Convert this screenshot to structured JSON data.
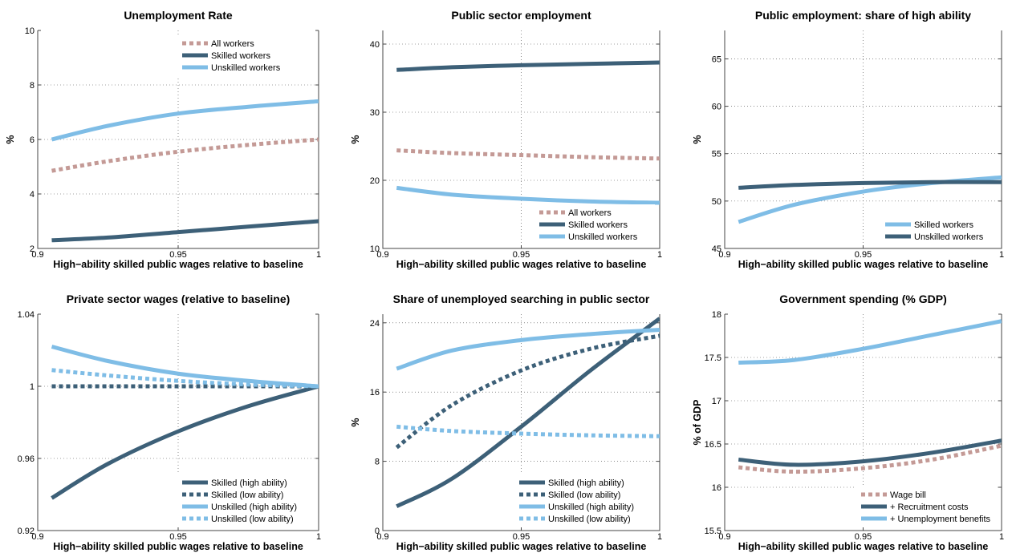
{
  "colors": {
    "all_workers": "#c49a96",
    "skilled": "#3d6078",
    "unskilled": "#7fbde6"
  },
  "chart_data": [
    {
      "type": "line",
      "title": "Unemployment Rate",
      "xlabel": "High−ability skilled public wages relative to baseline",
      "ylabel": "%",
      "xlim": [
        0.9,
        1
      ],
      "ylim": [
        2,
        10
      ],
      "xticks": [
        0.9,
        0.95,
        1
      ],
      "xtick_labels": [
        "0.9",
        "0.95",
        "1"
      ],
      "yticks": [
        2,
        4,
        6,
        8,
        10
      ],
      "ytick_labels": [
        "2",
        "4",
        "6",
        "8",
        "10"
      ],
      "grid": true,
      "legend_position": "top-right",
      "x": [
        0.905,
        0.925,
        0.95,
        0.975,
        1.0
      ],
      "series": [
        {
          "name": "All workers",
          "color_key": "all_workers",
          "style": "dotted",
          "values": [
            4.85,
            5.2,
            5.55,
            5.8,
            6.0
          ]
        },
        {
          "name": "Skilled workers",
          "color_key": "skilled",
          "style": "solid",
          "values": [
            2.3,
            2.4,
            2.6,
            2.8,
            3.0
          ]
        },
        {
          "name": "Unskilled workers",
          "color_key": "unskilled",
          "style": "solid",
          "values": [
            6.0,
            6.5,
            6.95,
            7.2,
            7.4
          ]
        }
      ]
    },
    {
      "type": "line",
      "title": "Public sector employment",
      "xlabel": "High−ability skilled public wages relative to baseline",
      "ylabel": "%",
      "xlim": [
        0.9,
        1
      ],
      "ylim": [
        10,
        42
      ],
      "xticks": [
        0.9,
        0.95,
        1
      ],
      "xtick_labels": [
        "0.9",
        "0.95",
        "1"
      ],
      "yticks": [
        10,
        20,
        30,
        40
      ],
      "ytick_labels": [
        "10",
        "20",
        "30",
        "40"
      ],
      "grid": true,
      "legend_position": "bottom-right",
      "x": [
        0.905,
        0.925,
        0.95,
        0.975,
        1.0
      ],
      "series": [
        {
          "name": "All workers",
          "color_key": "all_workers",
          "style": "dotted",
          "values": [
            24.4,
            24.0,
            23.7,
            23.4,
            23.2
          ]
        },
        {
          "name": "Skilled workers",
          "color_key": "skilled",
          "style": "solid",
          "values": [
            36.2,
            36.6,
            36.9,
            37.1,
            37.3
          ]
        },
        {
          "name": "Unskilled workers",
          "color_key": "unskilled",
          "style": "solid",
          "values": [
            18.9,
            17.9,
            17.3,
            16.9,
            16.7
          ]
        }
      ]
    },
    {
      "type": "line",
      "title": "Public employment: share of high ability",
      "xlabel": "High−ability skilled public wages relative to baseline",
      "ylabel": "%",
      "xlim": [
        0.9,
        1
      ],
      "ylim": [
        45,
        68
      ],
      "xticks": [
        0.9,
        0.95,
        1
      ],
      "xtick_labels": [
        "0.9",
        "0.95",
        "1"
      ],
      "yticks": [
        45,
        50,
        55,
        60,
        65
      ],
      "ytick_labels": [
        "45",
        "50",
        "55",
        "60",
        "65"
      ],
      "grid": true,
      "legend_position": "bottom-right",
      "x": [
        0.905,
        0.925,
        0.95,
        0.975,
        1.0
      ],
      "series": [
        {
          "name": "Skilled workers",
          "color_key": "unskilled",
          "style": "solid",
          "values": [
            47.8,
            49.6,
            51.0,
            51.9,
            52.5
          ]
        },
        {
          "name": "Unskilled workers",
          "color_key": "skilled",
          "style": "solid",
          "values": [
            51.4,
            51.7,
            51.9,
            52.0,
            52.0
          ]
        }
      ]
    },
    {
      "type": "line",
      "title": "Private sector wages (relative to baseline)",
      "xlabel": "High−ability skilled public wages relative to baseline",
      "ylabel": "",
      "xlim": [
        0.9,
        1
      ],
      "ylim": [
        0.92,
        1.04
      ],
      "xticks": [
        0.9,
        0.95,
        1
      ],
      "xtick_labels": [
        "0.9",
        "0.95",
        "1"
      ],
      "yticks": [
        0.92,
        0.96,
        1,
        1.04
      ],
      "ytick_labels": [
        "0.92",
        "0.96",
        "1",
        "1.04"
      ],
      "grid": true,
      "legend_position": "bottom-right",
      "x": [
        0.905,
        0.925,
        0.95,
        0.975,
        1.0
      ],
      "series": [
        {
          "name": "Skilled (high ability)",
          "color_key": "skilled",
          "style": "solid",
          "values": [
            0.938,
            0.957,
            0.975,
            0.989,
            1.0
          ]
        },
        {
          "name": "Skilled (low ability)",
          "color_key": "skilled",
          "style": "dotted",
          "values": [
            1.0,
            1.0,
            1.0,
            1.0,
            1.0
          ]
        },
        {
          "name": "Unskilled (high ability)",
          "color_key": "unskilled",
          "style": "solid",
          "values": [
            1.022,
            1.014,
            1.007,
            1.003,
            1.0
          ]
        },
        {
          "name": "Unskilled (low ability)",
          "color_key": "unskilled",
          "style": "dotted",
          "values": [
            1.009,
            1.006,
            1.003,
            1.001,
            1.0
          ]
        }
      ]
    },
    {
      "type": "line",
      "title": "Share of unemployed searching in public sector",
      "xlabel": "High−ability skilled public wages relative to baseline",
      "ylabel": "%",
      "xlim": [
        0.9,
        1
      ],
      "ylim": [
        0,
        25
      ],
      "xticks": [
        0.9,
        0.95,
        1
      ],
      "xtick_labels": [
        "0.9",
        "0.95",
        "1"
      ],
      "yticks": [
        0,
        8,
        16,
        24
      ],
      "ytick_labels": [
        "0",
        "8",
        "16",
        "24"
      ],
      "grid": true,
      "legend_position": "bottom-right",
      "x": [
        0.905,
        0.925,
        0.95,
        0.975,
        1.0
      ],
      "series": [
        {
          "name": "Skilled (high ability)",
          "color_key": "skilled",
          "style": "solid",
          "values": [
            2.8,
            6.0,
            12.0,
            18.5,
            24.5
          ]
        },
        {
          "name": "Skilled (low ability)",
          "color_key": "skilled",
          "style": "dotted",
          "values": [
            9.6,
            14.5,
            18.5,
            21.0,
            22.5
          ]
        },
        {
          "name": "Unskilled (high ability)",
          "color_key": "unskilled",
          "style": "solid",
          "values": [
            18.7,
            20.8,
            22.0,
            22.7,
            23.2
          ]
        },
        {
          "name": "Unskilled (low ability)",
          "color_key": "unskilled",
          "style": "dotted",
          "values": [
            12.0,
            11.5,
            11.2,
            11.0,
            10.9
          ]
        }
      ]
    },
    {
      "type": "line",
      "title": "Government spending (% GDP)",
      "xlabel": "High−ability skilled public wages relative to baseline",
      "ylabel": "% of GDP",
      "xlim": [
        0.9,
        1
      ],
      "ylim": [
        15.5,
        18
      ],
      "xticks": [
        0.9,
        0.95,
        1
      ],
      "xtick_labels": [
        "0.9",
        "0.95",
        "1"
      ],
      "yticks": [
        15.5,
        16,
        16.5,
        17,
        17.5,
        18
      ],
      "ytick_labels": [
        "15.5",
        "16",
        "16.5",
        "17",
        "17.5",
        "18"
      ],
      "grid": true,
      "legend_position": "bottom-right",
      "x": [
        0.905,
        0.925,
        0.95,
        0.975,
        1.0
      ],
      "series": [
        {
          "name": "Wage bill",
          "color_key": "all_workers",
          "style": "dotted",
          "values": [
            16.23,
            16.18,
            16.22,
            16.32,
            16.48
          ]
        },
        {
          "name": "+ Recruitment costs",
          "color_key": "skilled",
          "style": "solid",
          "values": [
            16.32,
            16.26,
            16.3,
            16.4,
            16.54
          ]
        },
        {
          "name": "+ Unemployment benefits",
          "color_key": "unskilled",
          "style": "solid",
          "values": [
            17.44,
            17.47,
            17.6,
            17.76,
            17.92
          ]
        }
      ]
    }
  ]
}
